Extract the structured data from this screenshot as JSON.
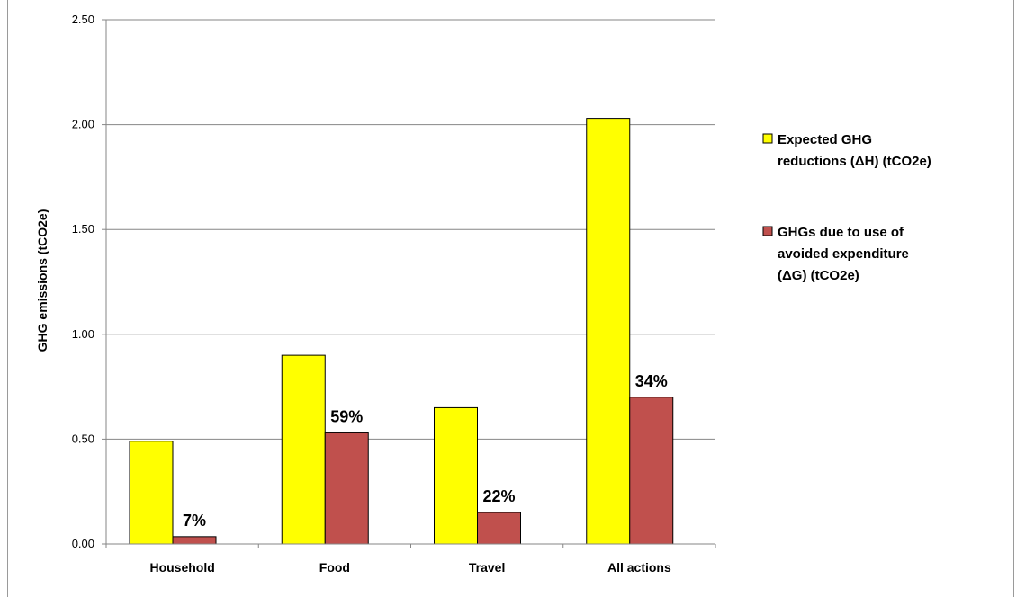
{
  "chart_data": {
    "type": "bar",
    "title": "",
    "xlabel": "",
    "ylabel": "GHG emissions (tCO2e)",
    "ylim": [
      0,
      2.5
    ],
    "yticks": [
      "0.00",
      "0.50",
      "1.00",
      "1.50",
      "2.00",
      "2.50"
    ],
    "grid": true,
    "legend_position": "right",
    "categories": [
      "Household",
      "Food",
      "Travel",
      "All actions"
    ],
    "series": [
      {
        "name_lines": [
          "Expected GHG",
          "reductions (ΔH)  (tCO2e)"
        ],
        "color": "#FFFF00",
        "values": [
          0.49,
          0.9,
          0.65,
          2.03
        ]
      },
      {
        "name_lines": [
          "GHGs due to use of",
          "avoided expenditure",
          "(ΔG) (tCO2e)"
        ],
        "color": "#C0504D",
        "values": [
          0.035,
          0.53,
          0.15,
          0.7
        ],
        "data_labels": [
          "7%",
          "59%",
          "22%",
          "34%"
        ]
      }
    ]
  }
}
